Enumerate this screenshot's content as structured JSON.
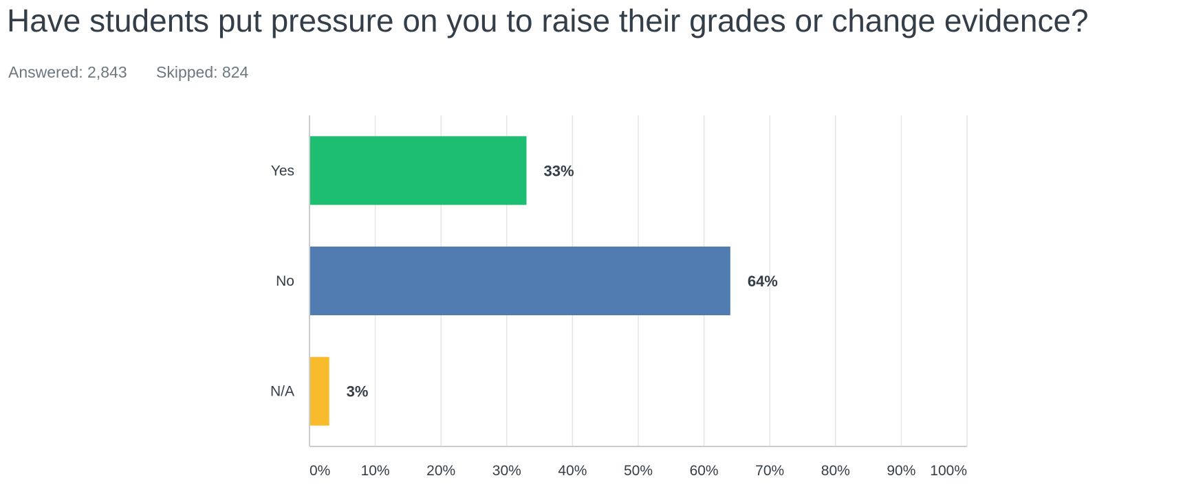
{
  "header": {
    "question": "Have students put pressure on you to raise their grades or change evidence?",
    "answered_label": "Answered: 2,843",
    "skipped_label": "Skipped: 824"
  },
  "chart_data": {
    "type": "bar",
    "orientation": "horizontal",
    "categories": [
      "Yes",
      "No",
      "N/A"
    ],
    "values": [
      33,
      64,
      3
    ],
    "data_labels": [
      "33%",
      "64%",
      "3%"
    ],
    "colors": [
      "#1ebe72",
      "#507cb2",
      "#f7bb2b"
    ],
    "xlim": [
      0,
      100
    ],
    "x_ticks": [
      "0%",
      "10%",
      "20%",
      "30%",
      "40%",
      "50%",
      "60%",
      "70%",
      "80%",
      "90%",
      "100%"
    ],
    "grid": true,
    "title": "",
    "xlabel": "",
    "ylabel": ""
  }
}
